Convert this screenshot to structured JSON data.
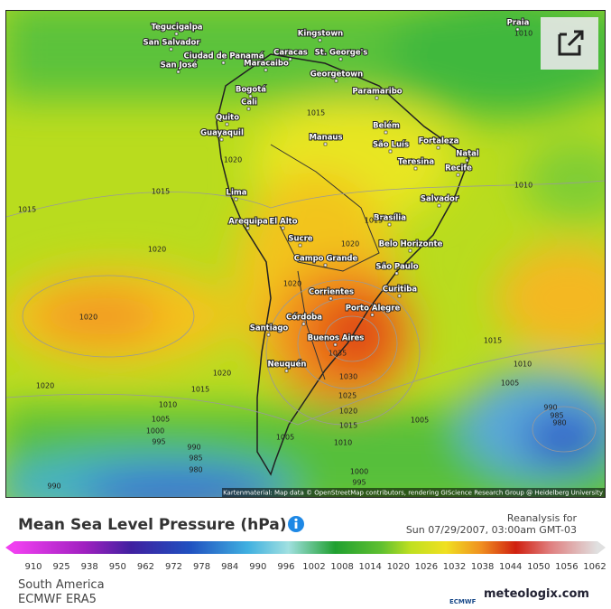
{
  "map": {
    "cities": [
      "Tegucigalpa",
      "San Salvador",
      "Ciudad de Panamá",
      "San José",
      "Caracas",
      "Kingstown",
      "St. George's",
      "Maracaibo",
      "Georgetown",
      "Paramaribo",
      "Bogotá",
      "Cali",
      "Quito",
      "Guayaquil",
      "Belém",
      "Manaus",
      "São Luís",
      "Fortaleza",
      "Natal",
      "Teresina",
      "Recife",
      "Salvador",
      "Lima",
      "Arequipa",
      "El Alto",
      "Brasília",
      "Sucre",
      "Belo Horizonte",
      "Campo Grande",
      "São Paulo",
      "Curitiba",
      "Corrientes",
      "Porto Alegre",
      "Córdoba",
      "Santiago",
      "Buenos Aires",
      "Neuquén",
      "Praia"
    ],
    "isobar_labels": [
      1010,
      1015,
      1020,
      1015,
      1015,
      1010,
      1020,
      1020,
      1015,
      1020,
      1020,
      1015,
      1010,
      1020,
      1035,
      1030,
      1025,
      1020,
      1015,
      1010,
      1005,
      1015,
      1020,
      1010,
      1005,
      1000,
      995,
      990,
      985,
      980,
      1005,
      1005,
      990,
      985,
      980,
      1000,
      995,
      990
    ],
    "attribution": "Kartenmaterial: Map data © OpenStreetMap contributors, rendering GIScience Research Group @ Heidelberg University"
  },
  "legend": {
    "title": "Mean Sea Level Pressure (hPa)",
    "reanalysis_label": "Reanalysis for",
    "datetime": "Sun 07/29/2007, 03:00am GMT-03",
    "ticks": [
      910,
      925,
      938,
      950,
      962,
      972,
      978,
      984,
      990,
      996,
      1002,
      1008,
      1014,
      1020,
      1026,
      1032,
      1038,
      1044,
      1050,
      1056,
      1062
    ]
  },
  "footer": {
    "region": "South America",
    "model": "ECMWF ERA5",
    "logo_ecmwf": "ECMWF",
    "logo": "meteologix.com"
  }
}
